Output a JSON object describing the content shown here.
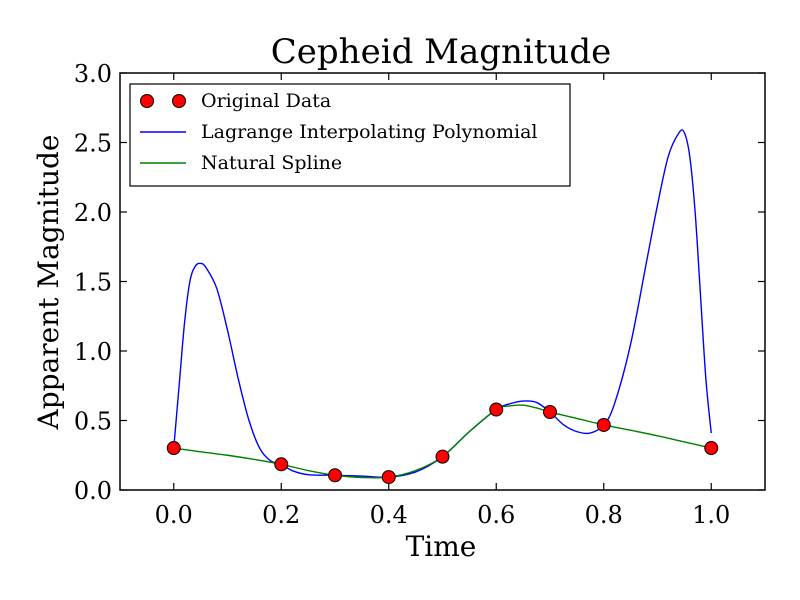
{
  "chart_data": {
    "type": "line",
    "title": "Cepheid Magnitude",
    "xlabel": "Time",
    "ylabel": "Apparent Magnitude",
    "xlim": [
      -0.1,
      1.1
    ],
    "ylim": [
      0.0,
      3.0
    ],
    "xticks": [
      "0.0",
      "0.2",
      "0.4",
      "0.6",
      "0.8",
      "1.0"
    ],
    "yticks": [
      "0.0",
      "0.5",
      "1.0",
      "1.5",
      "2.0",
      "2.5",
      "3.0"
    ],
    "grid": false,
    "legend_position": "top-left",
    "series": [
      {
        "name": "Original Data",
        "kind": "markers",
        "color": "#ff0000",
        "x": [
          0.0,
          0.2,
          0.3,
          0.4,
          0.5,
          0.6,
          0.7,
          0.8,
          1.0
        ],
        "y": [
          0.302,
          0.185,
          0.106,
          0.093,
          0.24,
          0.579,
          0.561,
          0.468,
          0.302
        ]
      },
      {
        "name": "Lagrange Interpolating Polynomial",
        "kind": "line",
        "color": "#0000ff",
        "x": [
          0.0,
          0.01,
          0.02,
          0.03,
          0.04,
          0.05,
          0.06,
          0.08,
          0.1,
          0.12,
          0.14,
          0.16,
          0.18,
          0.2,
          0.22,
          0.25,
          0.3,
          0.35,
          0.4,
          0.45,
          0.5,
          0.55,
          0.6,
          0.625,
          0.65,
          0.675,
          0.7,
          0.725,
          0.75,
          0.775,
          0.8,
          0.82,
          0.85,
          0.88,
          0.9,
          0.92,
          0.94,
          0.95,
          0.96,
          0.97,
          0.98,
          0.99,
          1.0
        ],
        "y": [
          0.302,
          0.75,
          1.2,
          1.5,
          1.61,
          1.63,
          1.6,
          1.45,
          1.15,
          0.8,
          0.5,
          0.3,
          0.21,
          0.185,
          0.14,
          0.11,
          0.106,
          0.1,
          0.093,
          0.13,
          0.24,
          0.42,
          0.579,
          0.62,
          0.64,
          0.63,
          0.561,
          0.47,
          0.42,
          0.41,
          0.468,
          0.62,
          1.05,
          1.65,
          2.05,
          2.4,
          2.57,
          2.57,
          2.4,
          2.0,
          1.4,
          0.8,
          0.41
        ]
      },
      {
        "name": "Natural Spline",
        "kind": "line",
        "color": "#008000",
        "x": [
          0.0,
          0.05,
          0.1,
          0.15,
          0.2,
          0.25,
          0.3,
          0.35,
          0.4,
          0.45,
          0.5,
          0.55,
          0.6,
          0.625,
          0.65,
          0.675,
          0.7,
          0.75,
          0.8,
          0.85,
          0.9,
          0.95,
          1.0
        ],
        "y": [
          0.302,
          0.275,
          0.25,
          0.22,
          0.185,
          0.14,
          0.106,
          0.09,
          0.093,
          0.14,
          0.24,
          0.42,
          0.579,
          0.605,
          0.61,
          0.59,
          0.561,
          0.515,
          0.468,
          0.43,
          0.39,
          0.346,
          0.302
        ]
      }
    ]
  }
}
